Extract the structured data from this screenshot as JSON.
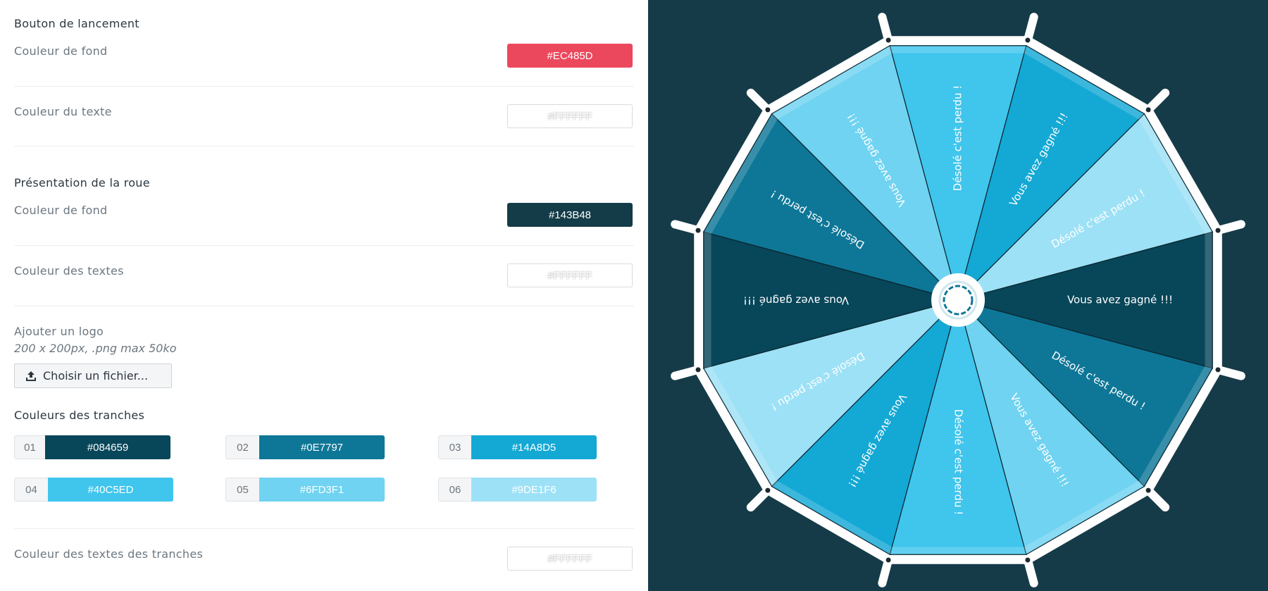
{
  "launch_button": {
    "title": "Bouton de lancement",
    "bg_label": "Couleur de fond",
    "bg_value": "#EC485D",
    "text_label": "Couleur du texte",
    "text_value": "#FFFFFF"
  },
  "wheel_presentation": {
    "title": "Présentation de la roue",
    "bg_label": "Couleur de fond",
    "bg_value": "#143B48",
    "texts_label": "Couleur des textes",
    "texts_value": "#FFFFFF"
  },
  "logo": {
    "label": "Ajouter un logo",
    "hint": "200 x 200px, .png max 50ko",
    "button_label": "Choisir un fichier...",
    "icon": "upload-icon"
  },
  "slices_colors": {
    "title": "Couleurs des tranches",
    "items": [
      {
        "num": "01",
        "color": "#084659"
      },
      {
        "num": "02",
        "color": "#0E7797"
      },
      {
        "num": "03",
        "color": "#14A8D5"
      },
      {
        "num": "04",
        "color": "#40C5ED"
      },
      {
        "num": "05",
        "color": "#6FD3F1"
      },
      {
        "num": "06",
        "color": "#9DE1F6"
      }
    ],
    "text_label": "Couleur des textes des tranches",
    "text_value": "#FFFFFF"
  },
  "wheel": {
    "background": "#143B48",
    "slices": [
      {
        "label": "Vous avez gagné !!!",
        "color": "#084659"
      },
      {
        "label": "Désolé c'est perdu !",
        "color": "#0E7797"
      },
      {
        "label": "Vous avez gagné !!!",
        "color": "#6FD3F1"
      },
      {
        "label": "Désolé c'est perdu !",
        "color": "#40C5ED"
      },
      {
        "label": "Vous avez gagné !!!",
        "color": "#14A8D5"
      },
      {
        "label": "Désolé c'est perdu !",
        "color": "#9DE1F6"
      },
      {
        "label": "Vous avez gagné !!!",
        "color": "#084659"
      },
      {
        "label": "Désolé c'est perdu !",
        "color": "#0E7797"
      },
      {
        "label": "Vous avez gagné !!!",
        "color": "#6FD3F1"
      },
      {
        "label": "Désolé c'est perdu !",
        "color": "#40C5ED"
      },
      {
        "label": "Vous avez gagné !!!",
        "color": "#14A8D5"
      },
      {
        "label": "Désolé c'est perdu !",
        "color": "#9DE1F6"
      }
    ]
  }
}
